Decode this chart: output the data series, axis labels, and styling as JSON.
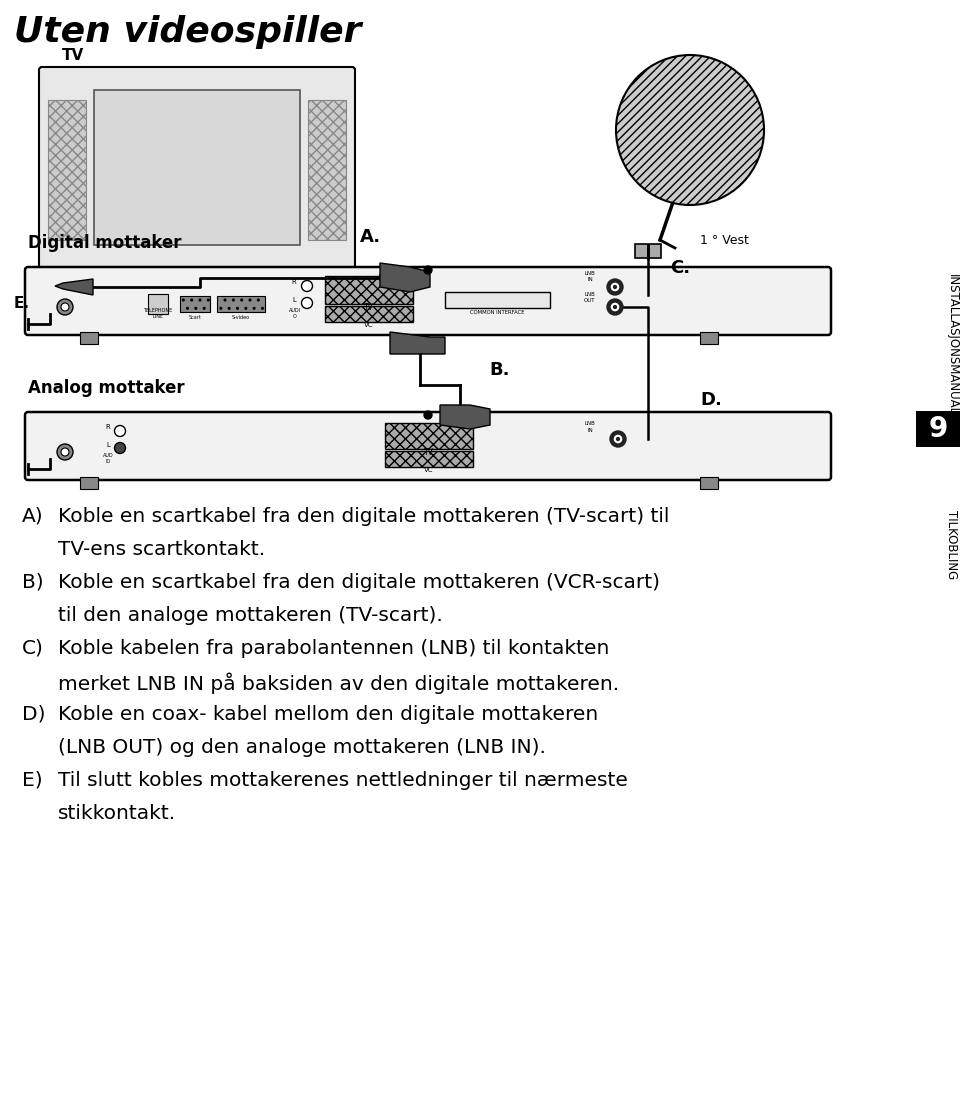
{
  "bg_color": "#ffffff",
  "title": "Uten videospiller",
  "sidebar_text1": "INSTALLASJONSMANUAL",
  "sidebar_text2": "9",
  "sidebar_text3": "TILKOBLING",
  "label_TV": "TV",
  "label_digital": "Digital mottaker",
  "label_analog": "Analog mottaker",
  "label_A": "A.",
  "label_B": "B.",
  "label_C": "C.",
  "label_D": "D.",
  "label_E": "E.",
  "label_vest": "1 ° Vest",
  "instr_lines": [
    [
      "A)",
      "Koble en scartkabel fra den digitale mottakeren (TV-scart) til"
    ],
    [
      "",
      "TV-ens scartkontakt."
    ],
    [
      "B)",
      "Koble en scartkabel fra den digitale mottakeren (VCR-scart)"
    ],
    [
      "",
      "til den analoge mottakeren (TV-scart)."
    ],
    [
      "C)",
      "Koble kabelen fra parabolantennen (LNB) til kontakten"
    ],
    [
      "",
      "merket LNB IN på baksiden av den digitale mottakeren."
    ],
    [
      "D)",
      "Koble en coax- kabel mellom den digitale mottakeren"
    ],
    [
      "",
      "(LNB OUT) og den analoge mottakeren (LNB IN)."
    ],
    [
      "E)",
      "Til slutt kobles mottakerenes nettledninger til nærmeste"
    ],
    [
      "",
      "stikkontakt."
    ]
  ],
  "font_instr": 14.5
}
